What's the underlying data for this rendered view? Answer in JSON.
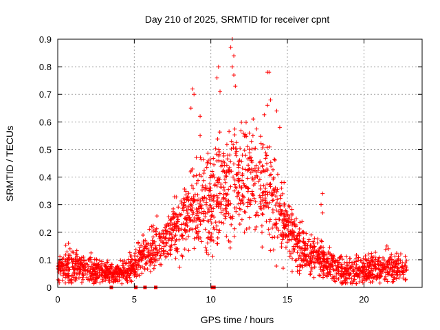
{
  "chart_data": {
    "type": "scatter",
    "title": "Day 210 of 2025, SRMTID for receiver cpnt",
    "xlabel": "GPS time / hours",
    "ylabel": "SRMTID / TECUs",
    "xlim": [
      0,
      23.8
    ],
    "ylim": [
      0,
      0.9
    ],
    "xticks": [
      0,
      5,
      10,
      15,
      20
    ],
    "yticks": [
      0,
      0.1,
      0.2,
      0.3,
      0.4,
      0.5,
      0.6,
      0.7,
      0.8,
      0.9
    ],
    "ytick_labels": [
      "0",
      "0.1",
      "0.2",
      "0.3",
      "0.4",
      "0.5",
      "0.6",
      "0.7",
      "0.8",
      "0.9"
    ],
    "grid": true,
    "marker": "+",
    "color": "#ff0000",
    "series": [
      {
        "name": "SRMTID",
        "profile": [
          [
            0,
            0.06,
            0.03
          ],
          [
            0.7,
            0.08,
            0.04
          ],
          [
            1.5,
            0.07,
            0.03
          ],
          [
            2.5,
            0.06,
            0.03
          ],
          [
            3.5,
            0.05,
            0.02
          ],
          [
            4.5,
            0.06,
            0.03
          ],
          [
            5.0,
            0.08,
            0.03
          ],
          [
            5.5,
            0.12,
            0.04
          ],
          [
            6.5,
            0.15,
            0.05
          ],
          [
            7.5,
            0.2,
            0.06
          ],
          [
            8.5,
            0.26,
            0.08
          ],
          [
            9.5,
            0.3,
            0.1
          ],
          [
            10.5,
            0.35,
            0.12
          ],
          [
            11.5,
            0.38,
            0.12
          ],
          [
            12.5,
            0.4,
            0.12
          ],
          [
            13.5,
            0.38,
            0.12
          ],
          [
            14.5,
            0.28,
            0.1
          ],
          [
            15.5,
            0.15,
            0.06
          ],
          [
            16.5,
            0.12,
            0.04
          ],
          [
            17.5,
            0.1,
            0.04
          ],
          [
            18.5,
            0.06,
            0.03
          ],
          [
            20.0,
            0.06,
            0.03
          ],
          [
            21.0,
            0.07,
            0.03
          ],
          [
            22.0,
            0.07,
            0.03
          ],
          [
            22.8,
            0.06,
            0.03
          ]
        ],
        "highlights": [
          [
            0.7,
            0.16
          ],
          [
            0.8,
            0.14
          ],
          [
            8.8,
            0.72
          ],
          [
            8.9,
            0.7
          ],
          [
            8.7,
            0.65
          ],
          [
            9.3,
            0.62
          ],
          [
            9.3,
            0.55
          ],
          [
            10.5,
            0.8
          ],
          [
            10.4,
            0.76
          ],
          [
            10.6,
            0.71
          ],
          [
            11.4,
            0.9
          ],
          [
            11.3,
            0.87
          ],
          [
            11.5,
            0.84
          ],
          [
            11.4,
            0.8
          ],
          [
            11.5,
            0.77
          ],
          [
            11.6,
            0.73
          ],
          [
            13.7,
            0.78
          ],
          [
            13.8,
            0.78
          ],
          [
            13.9,
            0.68
          ],
          [
            13.7,
            0.66
          ],
          [
            14.3,
            0.64
          ],
          [
            14.5,
            0.58
          ],
          [
            17.3,
            0.34
          ],
          [
            17.2,
            0.3
          ],
          [
            17.3,
            0.27
          ],
          [
            21.5,
            0.15
          ],
          [
            21.6,
            0.14
          ]
        ],
        "outliers": [
          [
            3.5,
            0.0
          ],
          [
            5.1,
            0.0
          ],
          [
            5.7,
            0.0
          ],
          [
            6.4,
            0.0
          ],
          [
            10.1,
            0.0
          ],
          [
            10.2,
            0.0
          ]
        ]
      }
    ]
  }
}
